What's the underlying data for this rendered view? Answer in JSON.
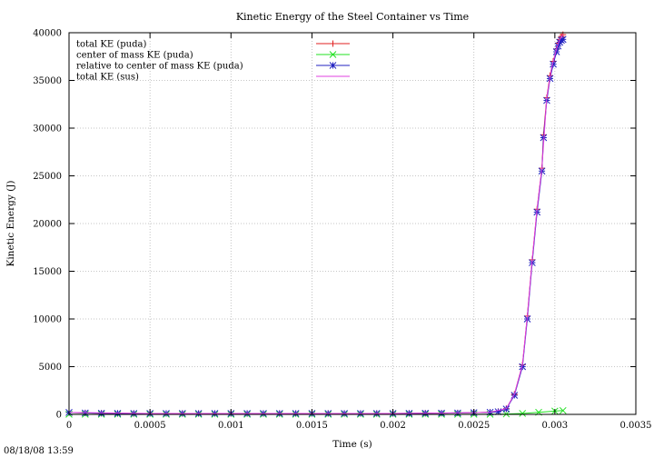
{
  "footer": {
    "timestamp": "08/18/08 13:59"
  },
  "chart_data": {
    "type": "line",
    "title": "Kinetic Energy of the Steel Container vs Time",
    "xlabel": "Time (s)",
    "ylabel": "Kinetic Energy (J)",
    "xlim": [
      0,
      0.0035
    ],
    "ylim": [
      0,
      40000
    ],
    "grid": true,
    "legend_position": "top-left",
    "x_ticks": [
      {
        "value": 0,
        "label": "0"
      },
      {
        "value": 0.0005,
        "label": "0.0005"
      },
      {
        "value": 0.001,
        "label": "0.001"
      },
      {
        "value": 0.0015,
        "label": "0.0015"
      },
      {
        "value": 0.002,
        "label": "0.002"
      },
      {
        "value": 0.0025,
        "label": "0.0025"
      },
      {
        "value": 0.003,
        "label": "0.003"
      },
      {
        "value": 0.0035,
        "label": "0.0035"
      }
    ],
    "y_ticks": [
      {
        "value": 0,
        "label": "0"
      },
      {
        "value": 5000,
        "label": "5000"
      },
      {
        "value": 10000,
        "label": "10000"
      },
      {
        "value": 15000,
        "label": "15000"
      },
      {
        "value": 20000,
        "label": "20000"
      },
      {
        "value": 25000,
        "label": "25000"
      },
      {
        "value": 30000,
        "label": "30000"
      },
      {
        "value": 35000,
        "label": "35000"
      },
      {
        "value": 40000,
        "label": "40000"
      }
    ],
    "series": [
      {
        "name": "total KE (puda)",
        "color": "#e02020",
        "marker": "plus",
        "x": [
          0.0,
          0.0001,
          0.0002,
          0.0003,
          0.0004,
          0.0005,
          0.0006,
          0.0007,
          0.0008,
          0.0009,
          0.001,
          0.0011,
          0.0012,
          0.0013,
          0.0014,
          0.0015,
          0.0016,
          0.0017,
          0.0018,
          0.0019,
          0.002,
          0.0021,
          0.0022,
          0.0023,
          0.0024,
          0.0025,
          0.0026,
          0.00265,
          0.0027,
          0.00275,
          0.0028,
          0.00283,
          0.00286,
          0.00289,
          0.00292,
          0.00293,
          0.00295,
          0.00297,
          0.00299,
          0.00301,
          0.00302,
          0.00303,
          0.00304,
          0.00305
        ],
        "y": [
          200,
          150,
          120,
          110,
          100,
          100,
          100,
          100,
          100,
          100,
          100,
          100,
          100,
          100,
          100,
          100,
          100,
          100,
          100,
          100,
          100,
          110,
          120,
          130,
          150,
          180,
          230,
          300,
          600,
          2100,
          5200,
          10300,
          16200,
          21500,
          25800,
          29300,
          33200,
          35500,
          37000,
          38300,
          38900,
          39300,
          39600,
          39800
        ]
      },
      {
        "name": "center of mass KE (puda)",
        "color": "#20e020",
        "marker": "cross",
        "x": [
          0.0,
          0.0001,
          0.0002,
          0.0003,
          0.0004,
          0.0005,
          0.0006,
          0.0007,
          0.0008,
          0.0009,
          0.001,
          0.0011,
          0.0012,
          0.0013,
          0.0014,
          0.0015,
          0.0016,
          0.0017,
          0.0018,
          0.0019,
          0.002,
          0.0021,
          0.0022,
          0.0023,
          0.0024,
          0.0025,
          0.0026,
          0.0027,
          0.0028,
          0.0029,
          0.003,
          0.00305
        ],
        "y": [
          10,
          10,
          10,
          10,
          10,
          10,
          10,
          10,
          10,
          10,
          10,
          10,
          10,
          10,
          10,
          10,
          10,
          10,
          10,
          10,
          10,
          10,
          10,
          10,
          10,
          10,
          15,
          40,
          100,
          220,
          350,
          400
        ]
      },
      {
        "name": "relative to center of mass KE (puda)",
        "color": "#2020c0",
        "marker": "star",
        "x": [
          0.0,
          0.0001,
          0.0002,
          0.0003,
          0.0004,
          0.0005,
          0.0006,
          0.0007,
          0.0008,
          0.0009,
          0.001,
          0.0011,
          0.0012,
          0.0013,
          0.0014,
          0.0015,
          0.0016,
          0.0017,
          0.0018,
          0.0019,
          0.002,
          0.0021,
          0.0022,
          0.0023,
          0.0024,
          0.0025,
          0.0026,
          0.00265,
          0.0027,
          0.00275,
          0.0028,
          0.00283,
          0.00286,
          0.00289,
          0.00292,
          0.00293,
          0.00295,
          0.00297,
          0.00299,
          0.00301,
          0.00302,
          0.00303,
          0.00304,
          0.00305
        ],
        "y": [
          200,
          150,
          120,
          110,
          100,
          100,
          100,
          100,
          100,
          100,
          100,
          100,
          100,
          100,
          100,
          100,
          100,
          100,
          100,
          100,
          100,
          110,
          120,
          130,
          150,
          180,
          220,
          280,
          560,
          2000,
          5000,
          10000,
          15900,
          21200,
          25500,
          29000,
          32900,
          35200,
          36700,
          38000,
          38600,
          39000,
          39200,
          39300
        ]
      },
      {
        "name": "total KE (sus)",
        "color": "#e040e0",
        "marker": "none",
        "x": [
          0.0,
          0.0005,
          0.001,
          0.0015,
          0.002,
          0.0025,
          0.0026,
          0.0027,
          0.00275,
          0.0028,
          0.00283,
          0.00286,
          0.00289,
          0.00292,
          0.00295,
          0.00298,
          0.00301,
          0.00303,
          0.00305
        ],
        "y": [
          200,
          100,
          100,
          100,
          100,
          180,
          230,
          600,
          2100,
          5200,
          10300,
          16200,
          21500,
          25800,
          33200,
          36300,
          38300,
          39300,
          39800
        ]
      }
    ]
  }
}
